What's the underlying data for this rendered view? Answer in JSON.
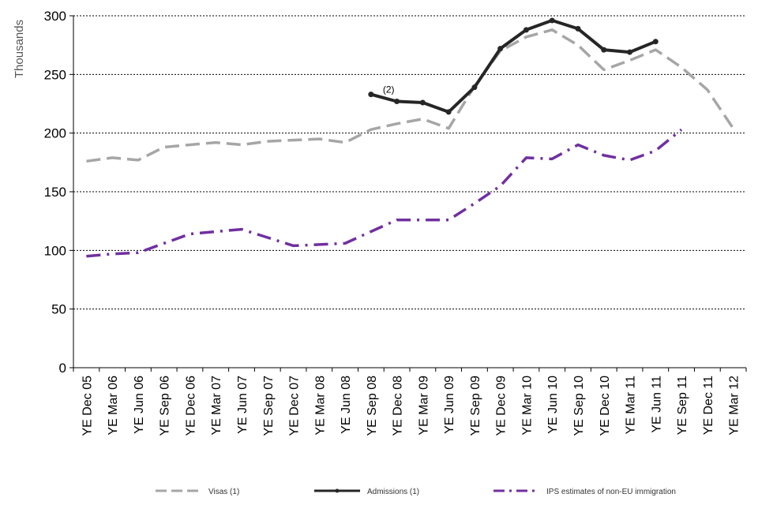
{
  "chart_data": {
    "type": "line",
    "title": "",
    "xlabel": "",
    "ylabel": "Thousands",
    "ylim": [
      0,
      300
    ],
    "yticks": [
      0,
      50,
      100,
      150,
      200,
      250,
      300
    ],
    "grid": "horizontal dotted",
    "legend_position": "bottom",
    "categories": [
      "YE Dec 05",
      "YE Mar 06",
      "YE Jun 06",
      "YE Sep 06",
      "YE Dec 06",
      "YE Mar 07",
      "YE Jun 07",
      "YE Sep 07",
      "YE Dec 07",
      "YE Mar 08",
      "YE Jun 08",
      "YE Sep 08",
      "YE Dec 08",
      "YE Mar 09",
      "YE Jun 09",
      "YE Sep 09",
      "YE Dec 09",
      "YE Mar 10",
      "YE Jun 10",
      "YE Sep 10",
      "YE Dec 10",
      "YE Mar 11",
      "YE Jun 11",
      "YE Sep 11",
      "YE Dec 11",
      "YE Mar 12"
    ],
    "series": [
      {
        "name": "Visas (1)",
        "style": "dashed",
        "color": "#a6a6a6",
        "values": [
          176,
          179,
          177,
          188,
          190,
          192,
          190,
          193,
          194,
          195,
          192,
          203,
          208,
          212,
          204,
          240,
          270,
          282,
          288,
          275,
          254,
          262,
          271,
          256,
          237,
          204
        ]
      },
      {
        "name": "Admissions (1)",
        "style": "solid-markers",
        "color": "#262626",
        "values": [
          null,
          null,
          null,
          null,
          null,
          null,
          null,
          null,
          null,
          null,
          null,
          233,
          227,
          226,
          218,
          239,
          272,
          288,
          296,
          289,
          271,
          269,
          278,
          null,
          null,
          null
        ]
      },
      {
        "name": "IPS estimates of non-EU immigration",
        "style": "dash-dot",
        "color": "#7030a0",
        "values": [
          95,
          97,
          98,
          106,
          114,
          116,
          118,
          111,
          104,
          105,
          106,
          116,
          126,
          126,
          126,
          140,
          155,
          179,
          178,
          190,
          181,
          177,
          185,
          203,
          null,
          null
        ]
      }
    ],
    "annotations": [
      {
        "text": "(2)",
        "category": "YE Sep 08",
        "series": "Admissions (1)"
      }
    ]
  }
}
